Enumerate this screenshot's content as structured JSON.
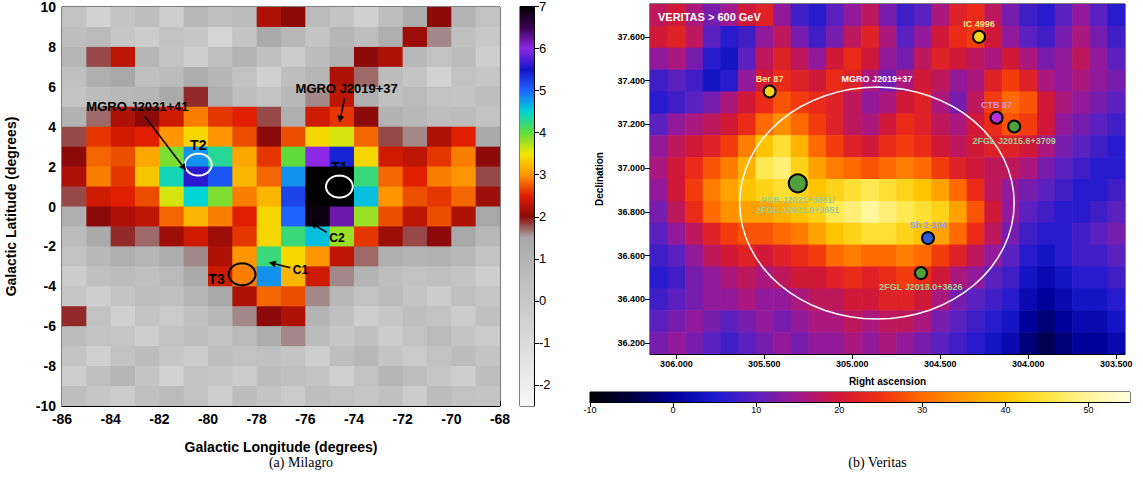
{
  "chart_data": [
    {
      "type": "heatmap",
      "caption": "(a) Milagro",
      "xlabel": "Galactic Longitude (degrees)",
      "ylabel": "Galactic Latitude (degrees)",
      "xlim": [
        -86,
        -68
      ],
      "xticks": [
        -86,
        -84,
        -82,
        -80,
        -78,
        -76,
        -74,
        -72,
        -70,
        -68
      ],
      "ylim": [
        -10,
        10
      ],
      "yticks": [
        -10,
        -8,
        -6,
        -4,
        -2,
        0,
        2,
        4,
        6,
        8,
        10
      ],
      "x": [
        -85.5,
        -84.5,
        -83.5,
        -82.5,
        -81.5,
        -80.5,
        -79.5,
        -78.5,
        -77.5,
        -76.5,
        -75.5,
        -74.5,
        -73.5,
        -72.5,
        -71.5,
        -70.5,
        -69.5,
        -68.5
      ],
      "y": [
        9.5,
        8.5,
        7.5,
        6.5,
        5.5,
        4.5,
        3.5,
        2.5,
        1.5,
        0.5,
        -0.5,
        -1.5,
        -2.5,
        -3.5,
        -4.5,
        -5.5,
        -6.5,
        -7.5,
        -8.5,
        -9.5
      ],
      "values": [
        [
          0.3,
          -0.5,
          0.2,
          0.5,
          -0.3,
          0.8,
          0.4,
          0.6,
          2.2,
          2.0,
          0.7,
          0.2,
          -0.4,
          0.5,
          1.3,
          2.0,
          1.0,
          0.3
        ],
        [
          0.5,
          0.7,
          0.1,
          -0.2,
          0.3,
          0.1,
          -0.6,
          0.2,
          1.4,
          0.8,
          0.2,
          0.9,
          0.5,
          1.2,
          2.1,
          1.6,
          0.4,
          0
        ],
        [
          0.9,
          1.8,
          2.3,
          0.9,
          0.2,
          -0.3,
          0.4,
          1.0,
          0.4,
          -0.2,
          0.6,
          1.1,
          2.0,
          2.2,
          0.8,
          0.3,
          0.6,
          -0.3
        ],
        [
          0.4,
          1.2,
          1.5,
          0.4,
          0.6,
          1.3,
          0.9,
          0.3,
          -0.4,
          0.5,
          0.9,
          2.2,
          1.7,
          0.6,
          0.2,
          -0.5,
          0.3,
          0.1
        ],
        [
          0.2,
          0.6,
          0.8,
          0.9,
          1.4,
          1.9,
          1.2,
          0.5,
          0.2,
          0.8,
          1.6,
          2.3,
          1.2,
          0.4,
          0.7,
          0.3,
          0.2,
          0.5
        ],
        [
          1.1,
          1.7,
          2.2,
          2.0,
          2.4,
          2.9,
          2.6,
          2.5,
          1.8,
          1.2,
          2.4,
          2.6,
          2.0,
          1.1,
          0.8,
          0.5,
          0.6,
          0.3
        ],
        [
          1.8,
          2.6,
          2.4,
          2.5,
          3.0,
          3.4,
          3.0,
          2.7,
          2.0,
          2.7,
          3.4,
          3.6,
          2.8,
          1.8,
          1.6,
          2.2,
          2.5,
          1.4
        ],
        [
          2.0,
          2.8,
          2.7,
          3.1,
          3.9,
          4.8,
          4.3,
          3.1,
          2.6,
          4.0,
          6.0,
          5.4,
          3.4,
          2.4,
          2.3,
          2.6,
          2.9,
          2.0
        ],
        [
          2.2,
          2.9,
          2.6,
          3.3,
          4.4,
          5.6,
          5.1,
          3.2,
          2.8,
          4.8,
          7.0,
          7.0,
          4.2,
          2.8,
          2.5,
          2.9,
          3.0,
          1.8
        ],
        [
          1.8,
          2.4,
          2.5,
          2.7,
          3.6,
          4.5,
          3.9,
          2.9,
          3.2,
          5.2,
          7.0,
          7.0,
          4.6,
          3.0,
          2.7,
          2.6,
          2.8,
          2.1
        ],
        [
          1.2,
          2.0,
          2.2,
          2.3,
          2.8,
          3.2,
          2.9,
          2.5,
          3.4,
          5.0,
          6.9,
          6.2,
          3.8,
          2.7,
          2.3,
          2.7,
          2.2,
          1.5
        ],
        [
          0.6,
          1.4,
          1.9,
          1.7,
          2.1,
          2.4,
          2.1,
          2.6,
          3.4,
          4.2,
          4.6,
          3.8,
          2.6,
          2.1,
          1.8,
          2.0,
          1.5,
          0.8
        ],
        [
          0.3,
          0.8,
          1.2,
          0.9,
          1.3,
          1.6,
          2.2,
          3.0,
          4.2,
          3.4,
          3.0,
          2.3,
          1.7,
          1.2,
          1.0,
          1.1,
          0.8,
          0.2
        ],
        [
          -0.2,
          0.4,
          0.6,
          0.4,
          0.7,
          1.4,
          2.4,
          2.9,
          4.8,
          3.2,
          2.4,
          1.6,
          1.0,
          0.5,
          0.3,
          0.4,
          0.2,
          -0.3
        ],
        [
          0.1,
          -0.3,
          0.2,
          0.5,
          0.4,
          0.9,
          1.5,
          2.2,
          2.8,
          2.7,
          1.6,
          0.8,
          0.3,
          0.6,
          0.2,
          -0.2,
          0.4,
          0.1
        ],
        [
          1.9,
          0.3,
          -0.4,
          0.2,
          -0.1,
          0.4,
          0.8,
          1.6,
          2.0,
          2.2,
          1.0,
          0.4,
          -0.3,
          0.1,
          0.5,
          0.3,
          -0.2,
          0.4
        ],
        [
          0.6,
          0.2,
          0.1,
          -0.3,
          0.3,
          0.5,
          0.2,
          0.7,
          1.3,
          1.6,
          0.6,
          0.1,
          0.4,
          -0.2,
          0.3,
          0.7,
          0.2,
          -0.1
        ],
        [
          0.2,
          -0.4,
          0.3,
          0.6,
          0.1,
          -0.2,
          0.5,
          0.3,
          0.4,
          0.2,
          -0.3,
          0.5,
          0.8,
          0.2,
          -0.1,
          0.3,
          0.6,
          0.2
        ],
        [
          -0.3,
          0.4,
          0.9,
          0.2,
          -0.5,
          0.3,
          0.1,
          -0.2,
          0.6,
          0.4,
          0.2,
          -0.4,
          0.3,
          0.9,
          0.5,
          0.1,
          -0.3,
          0.5
        ],
        [
          0.5,
          0.1,
          -0.2,
          0.4,
          0.7,
          0.3,
          -0.3,
          0.6,
          0.2,
          -0.1,
          0.5,
          0.3,
          0.1,
          0.4,
          -0.2,
          0.6,
          0.3,
          0.2
        ]
      ],
      "colorbar": {
        "range": [
          -2.5,
          7
        ],
        "ticks": [
          -2,
          -1,
          0,
          1,
          2,
          3,
          4,
          5,
          6,
          7
        ]
      },
      "regions": [
        {
          "label": "T1",
          "lon": -74.6,
          "lat": 1.0,
          "radius": 0.55,
          "color": "white"
        },
        {
          "label": "T2",
          "lon": -80.4,
          "lat": 2.1,
          "radius": 0.55,
          "color": "white"
        },
        {
          "label": "T3",
          "lon": -78.6,
          "lat": -3.4,
          "radius": 0.55,
          "color": "black"
        }
      ],
      "annotations": [
        {
          "text": "MGRO J2031+41",
          "at": [
            -82.9,
            5.0
          ],
          "arrow_to": [
            -80.9,
            1.8
          ]
        },
        {
          "text": "MGRO J2019+37",
          "at": [
            -74.3,
            5.9
          ],
          "arrow_to": [
            -74.6,
            4.2
          ]
        },
        {
          "text": "C1",
          "at": [
            -76.2,
            -3.2
          ],
          "arrow_to": [
            -77.5,
            -2.8
          ]
        },
        {
          "text": "C2",
          "at": [
            -74.7,
            -1.6
          ],
          "arrow_to": [
            -75.8,
            -0.8
          ]
        }
      ]
    },
    {
      "type": "heatmap",
      "title": "VERITAS > 600 GeV",
      "caption": "(b) Veritas",
      "xlabel": "Right ascension",
      "ylabel": "Declination",
      "xlim": [
        306.15,
        303.45
      ],
      "xticks": [
        {
          "value": 306,
          "label": "306.000"
        },
        {
          "value": 305.5,
          "label": "305.500"
        },
        {
          "value": 305,
          "label": "305.000"
        },
        {
          "value": 304.5,
          "label": "304.500"
        },
        {
          "value": 304,
          "label": "304.000"
        },
        {
          "value": 303.5,
          "label": "303.500"
        }
      ],
      "ylim": [
        36.15,
        37.75
      ],
      "yticks": [
        {
          "value": 36.2,
          "label": "36.200"
        },
        {
          "value": 36.4,
          "label": "36.400"
        },
        {
          "value": 36.6,
          "label": "36.600"
        },
        {
          "value": 36.8,
          "label": "36.800"
        },
        {
          "value": 37,
          "label": "37.000"
        },
        {
          "value": 37.2,
          "label": "37.200"
        },
        {
          "value": 37.4,
          "label": "37.400"
        },
        {
          "value": 37.6,
          "label": "37.600"
        }
      ],
      "x": [
        306.1,
        306.0,
        305.9,
        305.8,
        305.7,
        305.6,
        305.5,
        305.4,
        305.3,
        305.2,
        305.1,
        305.0,
        304.9,
        304.8,
        304.7,
        304.6,
        304.5,
        304.4,
        304.3,
        304.2,
        304.1,
        304.0,
        303.9,
        303.8,
        303.7,
        303.6,
        303.5
      ],
      "y": [
        37.7,
        37.6,
        37.5,
        37.4,
        37.3,
        37.2,
        37.1,
        37.0,
        36.9,
        36.8,
        36.7,
        36.6,
        36.5,
        36.4,
        36.3,
        36.2
      ],
      "values": [
        [
          18,
          20,
          16,
          12,
          15,
          20,
          22,
          14,
          8,
          6,
          10,
          14,
          18,
          12,
          8,
          10,
          16,
          22,
          24,
          18,
          12,
          8,
          6,
          10,
          14,
          10,
          6
        ],
        [
          20,
          22,
          18,
          10,
          6,
          8,
          14,
          18,
          12,
          8,
          12,
          18,
          22,
          16,
          10,
          14,
          20,
          24,
          26,
          20,
          14,
          10,
          8,
          12,
          16,
          12,
          8
        ],
        [
          14,
          16,
          12,
          6,
          4,
          10,
          18,
          22,
          18,
          14,
          20,
          24,
          20,
          14,
          12,
          18,
          22,
          20,
          18,
          16,
          20,
          16,
          12,
          14,
          18,
          14,
          10
        ],
        [
          8,
          10,
          8,
          4,
          6,
          14,
          20,
          24,
          22,
          20,
          24,
          22,
          16,
          12,
          16,
          20,
          18,
          14,
          16,
          22,
          26,
          22,
          16,
          14,
          16,
          14,
          12
        ],
        [
          6,
          8,
          10,
          12,
          16,
          20,
          24,
          28,
          26,
          24,
          22,
          18,
          14,
          16,
          20,
          22,
          16,
          12,
          18,
          26,
          30,
          28,
          20,
          16,
          14,
          12,
          10
        ],
        [
          10,
          14,
          16,
          18,
          20,
          24,
          30,
          34,
          30,
          26,
          22,
          18,
          16,
          20,
          24,
          22,
          18,
          16,
          20,
          24,
          28,
          26,
          20,
          14,
          12,
          10,
          8
        ],
        [
          14,
          18,
          20,
          22,
          26,
          32,
          40,
          44,
          38,
          30,
          26,
          22,
          20,
          24,
          26,
          24,
          20,
          18,
          20,
          22,
          22,
          20,
          16,
          12,
          10,
          8,
          6
        ],
        [
          16,
          20,
          24,
          28,
          32,
          38,
          46,
          48,
          42,
          36,
          32,
          30,
          28,
          30,
          32,
          30,
          26,
          22,
          20,
          18,
          18,
          16,
          12,
          10,
          8,
          6,
          6
        ],
        [
          14,
          20,
          26,
          32,
          36,
          40,
          42,
          44,
          42,
          40,
          42,
          44,
          46,
          44,
          42,
          40,
          36,
          30,
          24,
          18,
          14,
          12,
          10,
          8,
          6,
          6,
          8
        ],
        [
          12,
          18,
          24,
          30,
          34,
          36,
          36,
          38,
          40,
          42,
          46,
          48,
          50,
          48,
          46,
          44,
          42,
          36,
          28,
          20,
          14,
          10,
          8,
          6,
          6,
          8,
          10
        ],
        [
          10,
          14,
          18,
          22,
          26,
          28,
          28,
          30,
          32,
          36,
          40,
          42,
          44,
          44,
          42,
          40,
          36,
          30,
          24,
          18,
          12,
          8,
          6,
          6,
          8,
          10,
          12
        ],
        [
          8,
          10,
          14,
          18,
          20,
          22,
          20,
          22,
          24,
          26,
          30,
          32,
          30,
          30,
          32,
          30,
          26,
          22,
          18,
          14,
          10,
          6,
          4,
          6,
          8,
          8,
          10
        ],
        [
          6,
          8,
          12,
          14,
          16,
          18,
          16,
          18,
          20,
          20,
          22,
          24,
          22,
          24,
          26,
          24,
          20,
          16,
          14,
          10,
          8,
          4,
          2,
          4,
          6,
          6,
          8
        ],
        [
          8,
          10,
          12,
          14,
          14,
          16,
          14,
          14,
          16,
          18,
          18,
          20,
          20,
          22,
          22,
          20,
          16,
          12,
          10,
          8,
          6,
          2,
          0,
          2,
          4,
          4,
          6
        ],
        [
          10,
          12,
          14,
          12,
          10,
          12,
          14,
          12,
          14,
          16,
          16,
          18,
          16,
          18,
          18,
          16,
          12,
          10,
          8,
          6,
          4,
          0,
          -2,
          0,
          2,
          2,
          4
        ],
        [
          12,
          14,
          12,
          10,
          8,
          10,
          12,
          14,
          12,
          14,
          14,
          16,
          14,
          16,
          14,
          12,
          10,
          8,
          6,
          4,
          2,
          -2,
          -4,
          -2,
          0,
          0,
          2
        ]
      ],
      "colorbar": {
        "range": [
          -10,
          55
        ],
        "ticks": [
          -10,
          0,
          10,
          20,
          30,
          40,
          50
        ]
      },
      "circle": {
        "label": "MGRO J2019+37",
        "ra": 304.86,
        "dec": 36.84,
        "radius_ra": 0.78,
        "radius_dec": 0.53
      },
      "sources": [
        {
          "label": [
            "IC 4996"
          ],
          "ra": 304.28,
          "dec": 37.6,
          "color": "#f2d21b",
          "label_side": "above"
        },
        {
          "label": [
            "Ber 87"
          ],
          "ra": 305.47,
          "dec": 37.35,
          "color": "#f2d21b",
          "label_side": "above"
        },
        {
          "label": [
            "CTB 87"
          ],
          "ra": 304.18,
          "dec": 37.23,
          "color": "#b430d8",
          "label_side": "above"
        },
        {
          "label": [
            "2FGL J2015.6+3709"
          ],
          "ra": 304.08,
          "dec": 37.19,
          "color": "#4fa03c",
          "label_side": "below"
        },
        {
          "label": [
            "PSR J2021+3651/",
            "2FGL J2021.0+3651"
          ],
          "ra": 305.31,
          "dec": 36.93,
          "color": "#4fa03c",
          "label_side": "below"
        },
        {
          "label": [
            "Sh 2-104"
          ],
          "ra": 304.57,
          "dec": 36.68,
          "color": "#2a5cd8",
          "label_side": "above"
        },
        {
          "label": [
            "2FGL J2018.0+3626"
          ],
          "ra": 304.61,
          "dec": 36.52,
          "color": "#4fa03c",
          "label_side": "below"
        }
      ]
    }
  ]
}
